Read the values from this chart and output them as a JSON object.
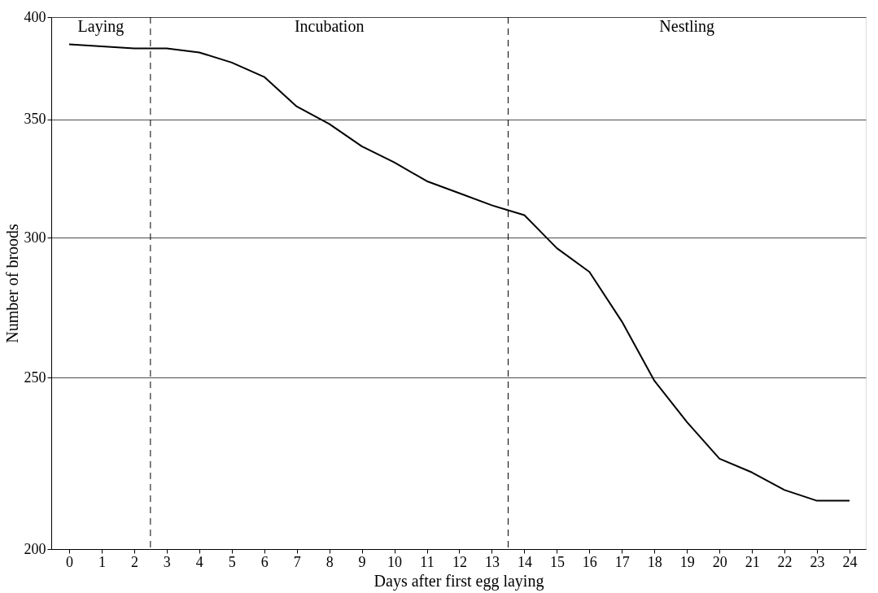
{
  "chart_data": {
    "type": "line",
    "xlabel": "Days after first egg laying",
    "ylabel": "Number of broods",
    "x": [
      0,
      1,
      2,
      3,
      4,
      5,
      6,
      7,
      8,
      9,
      10,
      11,
      12,
      13,
      14,
      15,
      16,
      17,
      18,
      19,
      20,
      21,
      22,
      23,
      24
    ],
    "series": [
      {
        "color": "#000000",
        "values": [
          386,
          385,
          384,
          384,
          382,
          377,
          370,
          356,
          348,
          338,
          331,
          323,
          318,
          313,
          309,
          296,
          287,
          269,
          249,
          236,
          225,
          221,
          216,
          213,
          213
        ]
      }
    ],
    "xlim": [
      -0.55,
      24.5
    ],
    "xticks": [
      0,
      1,
      2,
      3,
      4,
      5,
      6,
      7,
      8,
      9,
      10,
      11,
      12,
      13,
      14,
      15,
      16,
      17,
      18,
      19,
      20,
      21,
      22,
      23,
      24
    ],
    "ylim": [
      200,
      400
    ],
    "yticks": [
      200,
      250,
      300,
      350,
      400
    ],
    "log": "y",
    "grid": "y",
    "marker": "none",
    "line_style": "solid",
    "ref_lines": [
      {
        "axis": "x",
        "value": 2.5,
        "line_style": "dashed"
      },
      {
        "axis": "x",
        "value": 13.5,
        "line_style": "dashed"
      }
    ],
    "annotations": [
      "Laying",
      "Incubation",
      "Nestling"
    ]
  }
}
